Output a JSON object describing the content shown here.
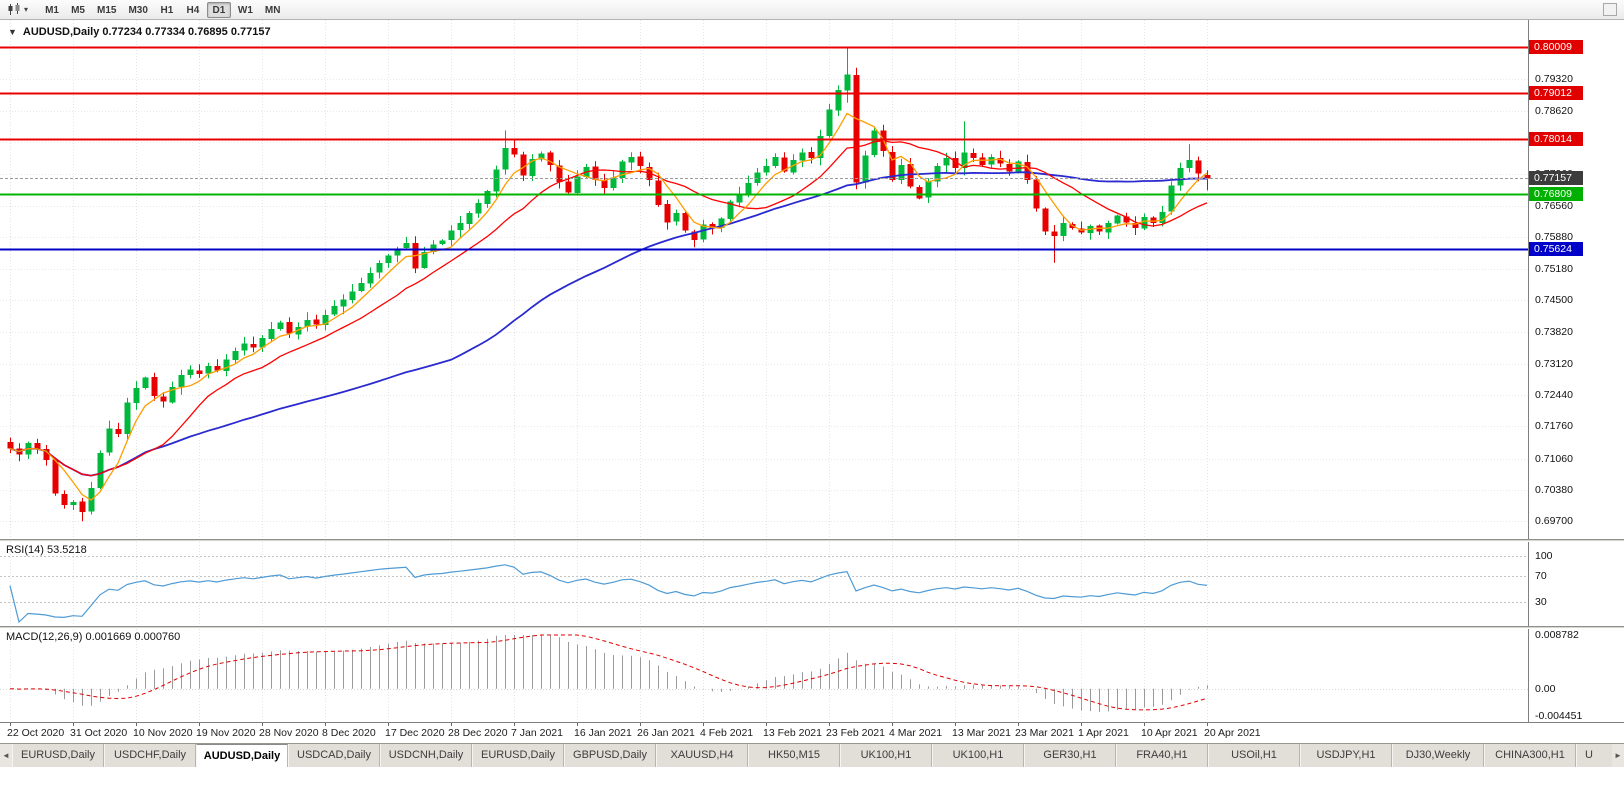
{
  "toolbar": {
    "timeframes": [
      "M1",
      "M5",
      "M15",
      "M30",
      "H1",
      "H4",
      "D1",
      "W1",
      "MN"
    ],
    "active_timeframe": "D1"
  },
  "chart": {
    "title": "AUDUSD,Daily 0.77234 0.77334 0.76895 0.77157",
    "symbol": "AUDUSD",
    "period": "Daily",
    "ohlc": {
      "open": "0.77234",
      "high": "0.77334",
      "low": "0.76895",
      "close": "0.77157"
    }
  },
  "price_axis": {
    "grid_labels": [
      "0.79320",
      "0.78620",
      "0.77940",
      "0.77260",
      "0.76560",
      "0.75880",
      "0.75180",
      "0.74500",
      "0.73820",
      "0.73120",
      "0.72440",
      "0.71760",
      "0.71060",
      "0.70380",
      "0.69700"
    ],
    "badges": [
      {
        "value": "0.80009",
        "price": 0.80009,
        "color": "#e00000",
        "text": "#ffffff"
      },
      {
        "value": "0.79012",
        "price": 0.79012,
        "color": "#e00000",
        "text": "#ffffff"
      },
      {
        "value": "0.78014",
        "price": 0.78014,
        "color": "#e00000",
        "text": "#ffffff"
      },
      {
        "value": "0.77157",
        "price": 0.77157,
        "color": "#3c3c3c",
        "text": "#ffffff"
      },
      {
        "value": "0.76809",
        "price": 0.76809,
        "color": "#00b000",
        "text": "#ffffff"
      },
      {
        "value": "0.75624",
        "price": 0.75624,
        "color": "#0000c8",
        "text": "#ffffff"
      }
    ]
  },
  "levels": [
    {
      "price": 0.80009,
      "color": "#e80000",
      "width": 2
    },
    {
      "price": 0.79012,
      "color": "#e80000",
      "width": 2
    },
    {
      "price": 0.78014,
      "color": "#e80000",
      "width": 2
    },
    {
      "price": 0.76809,
      "color": "#00b400",
      "width": 2
    },
    {
      "price": 0.75624,
      "color": "#0000c8",
      "width": 2
    }
  ],
  "current_price": 0.77157,
  "rsi": {
    "label": "RSI(14) 53.5218",
    "name": "RSI(14)",
    "value": "53.5218",
    "axis_labels": [
      "100",
      "70",
      "30"
    ],
    "line_color": "#4f9bd5"
  },
  "macd": {
    "label": "MACD(12,26,9) 0.001669 0.000760",
    "name": "MACD(12,26,9)",
    "values": "0.001669 0.000760",
    "axis_labels": [
      "0.008782",
      "0.00",
      "-0.004451"
    ],
    "hist_color": "#9a9a9a",
    "signal_color": "#e00000"
  },
  "date_axis": [
    "22 Oct 2020",
    "31 Oct 2020",
    "10 Nov 2020",
    "19 Nov 2020",
    "28 Nov 2020",
    "8 Dec 2020",
    "17 Dec 2020",
    "28 Dec 2020",
    "7 Jan 2021",
    "16 Jan 2021",
    "26 Jan 2021",
    "4 Feb 2021",
    "13 Feb 2021",
    "23 Feb 2021",
    "4 Mar 2021",
    "13 Mar 2021",
    "23 Mar 2021",
    "1 Apr 2021",
    "10 Apr 2021",
    "20 Apr 2021"
  ],
  "tabs": {
    "left_arrow": "◄",
    "right_arrow": "►",
    "items": [
      {
        "label": "EURUSD,Daily",
        "active": false
      },
      {
        "label": "USDCHF,Daily",
        "active": false
      },
      {
        "label": "AUDUSD,Daily",
        "active": true
      },
      {
        "label": "USDCAD,Daily",
        "active": false
      },
      {
        "label": "USDCNH,Daily",
        "active": false
      },
      {
        "label": "EURUSD,Daily",
        "active": false
      },
      {
        "label": "GBPUSD,Daily",
        "active": false
      },
      {
        "label": "XAUUSD,H4",
        "active": false
      },
      {
        "label": "HK50,M15",
        "active": false
      },
      {
        "label": "UK100,H1",
        "active": false
      },
      {
        "label": "UK100,H1",
        "active": false
      },
      {
        "label": "GER30,H1",
        "active": false
      },
      {
        "label": "FRA40,H1",
        "active": false
      },
      {
        "label": "USOil,H1",
        "active": false
      },
      {
        "label": "USDJPY,H1",
        "active": false
      },
      {
        "label": "DJ30,Weekly",
        "active": false
      },
      {
        "label": "CHINA300,H1",
        "active": false
      },
      {
        "label": "U",
        "active": false,
        "partial": true
      }
    ]
  },
  "chart_data": {
    "type": "candlestick",
    "symbol": "AUDUSD",
    "timeframe": "D1",
    "y_range": {
      "top": 0.806,
      "bottom": 0.6931
    },
    "closes": [
      0.7128,
      0.7115,
      0.714,
      0.7126,
      0.7103,
      0.703,
      0.7005,
      0.7012,
      0.699,
      0.7042,
      0.7118,
      0.7172,
      0.716,
      0.7228,
      0.726,
      0.7282,
      0.7242,
      0.723,
      0.7262,
      0.7288,
      0.73,
      0.729,
      0.7308,
      0.7298,
      0.7322,
      0.734,
      0.7356,
      0.7348,
      0.7368,
      0.7388,
      0.7402,
      0.7378,
      0.7392,
      0.7408,
      0.7398,
      0.7418,
      0.7438,
      0.7452,
      0.747,
      0.7488,
      0.751,
      0.7532,
      0.7548,
      0.7562,
      0.7575,
      0.752,
      0.7555,
      0.7572,
      0.758,
      0.7602,
      0.7618,
      0.764,
      0.7662,
      0.7688,
      0.7735,
      0.7782,
      0.7768,
      0.7722,
      0.7758,
      0.777,
      0.7745,
      0.7708,
      0.7685,
      0.772,
      0.774,
      0.7712,
      0.7695,
      0.7718,
      0.7752,
      0.7762,
      0.7742,
      0.7712,
      0.7658,
      0.762,
      0.764,
      0.7602,
      0.7582,
      0.7615,
      0.7608,
      0.7628,
      0.7665,
      0.7682,
      0.7705,
      0.7728,
      0.7742,
      0.7762,
      0.773,
      0.7755,
      0.7772,
      0.776,
      0.7808,
      0.7865,
      0.7908,
      0.7942,
      0.7706,
      0.7765,
      0.782,
      0.7775,
      0.7712,
      0.7745,
      0.7698,
      0.7672,
      0.771,
      0.7742,
      0.776,
      0.7738,
      0.7772,
      0.776,
      0.7745,
      0.7762,
      0.7748,
      0.773,
      0.7752,
      0.7712,
      0.765,
      0.76,
      0.759,
      0.7618,
      0.7608,
      0.7598,
      0.7612,
      0.76,
      0.7618,
      0.7635,
      0.762,
      0.7608,
      0.7632,
      0.7618,
      0.7642,
      0.77,
      0.7738,
      0.7755,
      0.7726,
      0.77157
    ],
    "overrides": {
      "8": {
        "low": 0.697
      },
      "55": {
        "high": 0.782
      },
      "93": {
        "high": 0.80009,
        "low": 0.788
      },
      "94": {
        "low": 0.7692
      },
      "106": {
        "high": 0.784
      },
      "116": {
        "low": 0.7532
      },
      "131": {
        "high": 0.779
      },
      "133": {
        "open": 0.77234,
        "high": 0.77334,
        "low": 0.76895,
        "close": 0.77157
      }
    },
    "moving_averages": [
      {
        "period": 5,
        "color": "#ff9d00"
      },
      {
        "period": 13,
        "color": "#ff0000"
      },
      {
        "period": 50,
        "color": "#2a2ad0"
      }
    ],
    "indicators": {
      "rsi_period": 14,
      "macd": [
        12,
        26,
        9
      ]
    },
    "candle_up_color": "#00b93c",
    "candle_down_color": "#e80000"
  }
}
